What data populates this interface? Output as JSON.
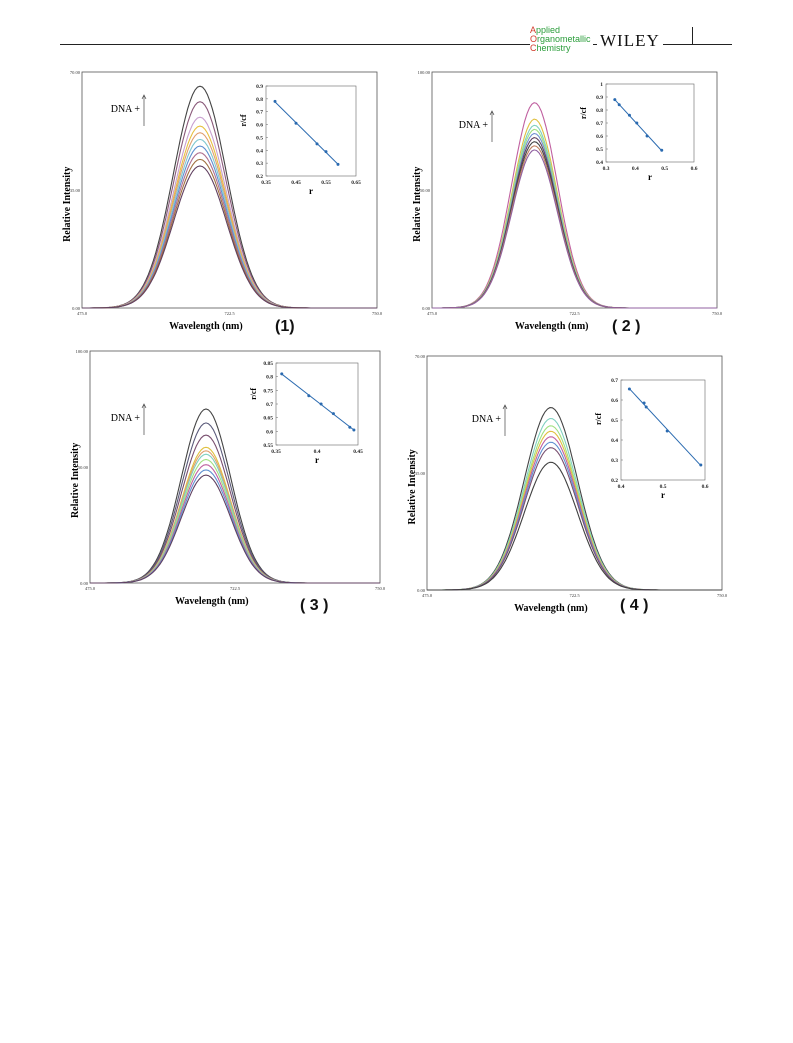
{
  "header": {
    "journal_line1_initial": "A",
    "journal_line1_rest": "pplied",
    "journal_line2_initial": "O",
    "journal_line2_rest": "rganometallic",
    "journal_line3_initial": "C",
    "journal_line3_rest": "hemistry",
    "publisher": "WILEY"
  },
  "figure": {
    "panels": [
      {
        "label": "(1)",
        "ylabel": "Relative Intensity",
        "xlabel": "Wavelength (nm)",
        "dna_label": "DNA +",
        "x_ticks": [
          "475.0",
          "722.5",
          "750.0"
        ],
        "y_ticks": [
          "0.00",
          "35.00",
          "70.00"
        ],
        "inset_ylabel": "r/cf",
        "inset_xlabel": "r"
      },
      {
        "label": "( 2 )",
        "ylabel": "Relative Intensity",
        "xlabel": "Wavelength (nm)",
        "dna_label": "DNA +",
        "x_ticks": [
          "475.0",
          "722.5",
          "750.0"
        ],
        "y_ticks": [
          "0.00",
          "50.00",
          "100.00"
        ],
        "inset_ylabel": "r/cf",
        "inset_xlabel": "r"
      },
      {
        "label": "( 3 )",
        "ylabel": "Relative Intensity",
        "xlabel": "Wavelength (nm)",
        "dna_label": "DNA +",
        "x_ticks": [
          "475.0",
          "722.5",
          "750.0"
        ],
        "y_ticks": [
          "0.00",
          "50.00",
          "100.00"
        ],
        "inset_ylabel": "r/cf",
        "inset_xlabel": "r"
      },
      {
        "label": "( 4 )",
        "ylabel": "Relative Intensity",
        "xlabel": "Wavelength (nm)",
        "dna_label": "DNA +",
        "x_ticks": [
          "475.0",
          "722.5",
          "750.0"
        ],
        "y_ticks": [
          "0.00",
          "35.00",
          "70.00"
        ],
        "inset_ylabel": "r/cf",
        "inset_xlabel": "r"
      }
    ]
  },
  "chart_data": [
    {
      "type": "line",
      "panel": "(1)",
      "series_colors": [
        "#444444",
        "#8a5a7a",
        "#c9a0d0",
        "#e8c040",
        "#e0a070",
        "#80c8d0",
        "#6090d0",
        "#b07090",
        "#a07040",
        "#604060"
      ],
      "peak_values": [
        1.0,
        0.93,
        0.86,
        0.82,
        0.79,
        0.76,
        0.73,
        0.7,
        0.67,
        0.64
      ],
      "inset": {
        "type": "scatter",
        "xlim": [
          0.35,
          0.65
        ],
        "ylim": [
          0.2,
          0.9
        ],
        "x_ticks": [
          "0.35",
          "0.45",
          "0.55",
          "0.65"
        ],
        "y_ticks": [
          "0.2",
          "0.3",
          "0.4",
          "0.5",
          "0.6",
          "0.7",
          "0.8",
          "0.9"
        ],
        "x": [
          0.38,
          0.45,
          0.52,
          0.55,
          0.59
        ],
        "y": [
          0.78,
          0.61,
          0.45,
          0.39,
          0.29
        ]
      }
    },
    {
      "type": "line",
      "panel": "(2)",
      "series_colors": [
        "#c060a0",
        "#e0c040",
        "#80d0c0",
        "#a0e080",
        "#7090d0",
        "#604060",
        "#444444",
        "#c08060",
        "#9060a0"
      ],
      "peak_values": [
        1.0,
        0.92,
        0.89,
        0.87,
        0.85,
        0.83,
        0.81,
        0.79,
        0.77
      ],
      "inset": {
        "type": "scatter",
        "xlim": [
          0.3,
          0.6
        ],
        "ylim": [
          0.4,
          1.0
        ],
        "x_ticks": [
          "0.3",
          "0.4",
          "0.5",
          "0.6"
        ],
        "y_ticks": [
          "0.4",
          "0.5",
          "0.6",
          "0.7",
          "0.8",
          "0.9",
          "1"
        ],
        "x": [
          0.33,
          0.345,
          0.38,
          0.405,
          0.44,
          0.49
        ],
        "y": [
          0.88,
          0.84,
          0.76,
          0.7,
          0.6,
          0.49
        ]
      }
    },
    {
      "type": "line",
      "panel": "(3)",
      "series_colors": [
        "#444444",
        "#5a5a7a",
        "#7a5070",
        "#e0c040",
        "#e0a070",
        "#80d0c0",
        "#a0e080",
        "#c060a0",
        "#6090d0",
        "#604060"
      ],
      "peak_values": [
        1.0,
        0.92,
        0.85,
        0.78,
        0.76,
        0.74,
        0.71,
        0.68,
        0.65,
        0.62
      ],
      "inset": {
        "type": "scatter",
        "xlim": [
          0.35,
          0.45
        ],
        "ylim": [
          0.55,
          0.85
        ],
        "x_ticks": [
          "0.35",
          "0.4",
          "0.45"
        ],
        "y_ticks": [
          "0.55",
          "0.6",
          "0.65",
          "0.7",
          "0.75",
          "0.8",
          "0.85"
        ],
        "x": [
          0.357,
          0.39,
          0.405,
          0.42,
          0.44,
          0.445
        ],
        "y": [
          0.81,
          0.73,
          0.7,
          0.665,
          0.615,
          0.605
        ]
      }
    },
    {
      "type": "line",
      "panel": "(4)",
      "series_colors": [
        "#444444",
        "#80d0c0",
        "#a0e080",
        "#e0c040",
        "#c060a0",
        "#6090d0",
        "#7a5070",
        "#404040"
      ],
      "peak_values": [
        1.0,
        0.94,
        0.9,
        0.87,
        0.84,
        0.81,
        0.78,
        0.7
      ],
      "inset": {
        "type": "scatter",
        "xlim": [
          0.4,
          0.6
        ],
        "ylim": [
          0.2,
          0.7
        ],
        "x_ticks": [
          "0.4",
          "0.5",
          "0.6"
        ],
        "y_ticks": [
          "0.2",
          "0.3",
          "0.4",
          "0.5",
          "0.6",
          "0.7"
        ],
        "x": [
          0.42,
          0.455,
          0.46,
          0.51,
          0.59
        ],
        "y": [
          0.655,
          0.585,
          0.565,
          0.445,
          0.275
        ]
      }
    }
  ]
}
